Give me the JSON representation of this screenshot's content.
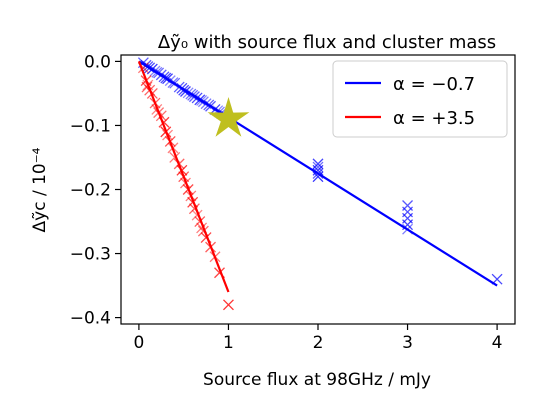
{
  "chart_data": {
    "type": "scatter",
    "title": "Δỹ₀ with source flux and cluster mass",
    "xlabel": "Source flux at 98GHz / mJy",
    "ylabel": "Δỹc / 10⁻⁴",
    "xlim": [
      -0.2,
      4.2
    ],
    "ylim": [
      -0.41,
      0.01
    ],
    "xticks": [
      0,
      1,
      2,
      3,
      4
    ],
    "yticks": [
      0.0,
      -0.1,
      -0.2,
      -0.3,
      -0.4
    ],
    "xtick_labels": [
      "0",
      "1",
      "2",
      "3",
      "4"
    ],
    "ytick_labels": [
      "0.0",
      "−0.1",
      "−0.2",
      "−0.3",
      "−0.4"
    ],
    "legend_position": "top-right",
    "grid": false,
    "series": [
      {
        "name": "α = −0.7",
        "color": "#0000ff",
        "fit_line": {
          "x": [
            0,
            4
          ],
          "y": [
            0.0,
            -0.35
          ]
        },
        "points": [
          [
            0.05,
            -0.002
          ],
          [
            0.08,
            -0.006
          ],
          [
            0.1,
            -0.008
          ],
          [
            0.12,
            -0.01
          ],
          [
            0.15,
            -0.012
          ],
          [
            0.18,
            -0.015
          ],
          [
            0.2,
            -0.017
          ],
          [
            0.22,
            -0.018
          ],
          [
            0.25,
            -0.021
          ],
          [
            0.28,
            -0.024
          ],
          [
            0.3,
            -0.026
          ],
          [
            0.32,
            -0.027
          ],
          [
            0.35,
            -0.03
          ],
          [
            0.38,
            -0.033
          ],
          [
            0.4,
            -0.034
          ],
          [
            0.45,
            -0.04
          ],
          [
            0.48,
            -0.042
          ],
          [
            0.5,
            -0.045
          ],
          [
            0.52,
            -0.047
          ],
          [
            0.55,
            -0.049
          ],
          [
            0.58,
            -0.051
          ],
          [
            0.6,
            -0.053
          ],
          [
            0.62,
            -0.055
          ],
          [
            0.65,
            -0.057
          ],
          [
            0.68,
            -0.06
          ],
          [
            0.7,
            -0.061
          ],
          [
            0.72,
            -0.063
          ],
          [
            0.75,
            -0.066
          ],
          [
            0.78,
            -0.068
          ],
          [
            0.8,
            -0.07
          ],
          [
            0.85,
            -0.075
          ],
          [
            0.88,
            -0.077
          ],
          [
            0.9,
            -0.079
          ],
          [
            0.92,
            -0.081
          ],
          [
            0.95,
            -0.083
          ],
          [
            0.98,
            -0.086
          ],
          [
            1.0,
            -0.088
          ],
          [
            1.0,
            -0.092
          ],
          [
            0.97,
            -0.09
          ],
          [
            2.0,
            -0.16
          ],
          [
            2.0,
            -0.165
          ],
          [
            2.0,
            -0.17
          ],
          [
            2.0,
            -0.175
          ],
          [
            2.0,
            -0.18
          ],
          [
            3.0,
            -0.225
          ],
          [
            3.0,
            -0.235
          ],
          [
            3.0,
            -0.245
          ],
          [
            3.0,
            -0.255
          ],
          [
            3.0,
            -0.262
          ],
          [
            4.0,
            -0.34
          ]
        ]
      },
      {
        "name": "α = +3.5",
        "color": "#ff0000",
        "fit_line": {
          "x": [
            0,
            1
          ],
          "y": [
            0.0,
            -0.36
          ]
        },
        "points": [
          [
            0.05,
            -0.01
          ],
          [
            0.08,
            -0.03
          ],
          [
            0.09,
            -0.04
          ],
          [
            0.1,
            -0.037
          ],
          [
            0.12,
            -0.045
          ],
          [
            0.15,
            -0.05
          ],
          [
            0.18,
            -0.065
          ],
          [
            0.2,
            -0.075
          ],
          [
            0.22,
            -0.08
          ],
          [
            0.25,
            -0.085
          ],
          [
            0.28,
            -0.095
          ],
          [
            0.3,
            -0.11
          ],
          [
            0.32,
            -0.115
          ],
          [
            0.35,
            -0.125
          ],
          [
            0.38,
            -0.135
          ],
          [
            0.4,
            -0.15
          ],
          [
            0.45,
            -0.16
          ],
          [
            0.48,
            -0.17
          ],
          [
            0.5,
            -0.18
          ],
          [
            0.52,
            -0.19
          ],
          [
            0.55,
            -0.2
          ],
          [
            0.58,
            -0.21
          ],
          [
            0.6,
            -0.22
          ],
          [
            0.62,
            -0.23
          ],
          [
            0.65,
            -0.24
          ],
          [
            0.68,
            -0.25
          ],
          [
            0.7,
            -0.26
          ],
          [
            0.72,
            -0.265
          ],
          [
            0.75,
            -0.275
          ],
          [
            0.8,
            -0.29
          ],
          [
            0.85,
            -0.305
          ],
          [
            0.9,
            -0.33
          ],
          [
            1.0,
            -0.38
          ]
        ]
      }
    ],
    "annotations": [
      {
        "marker": "star",
        "x": 1.0,
        "y": -0.09,
        "color": "#bfbf1f"
      }
    ]
  }
}
